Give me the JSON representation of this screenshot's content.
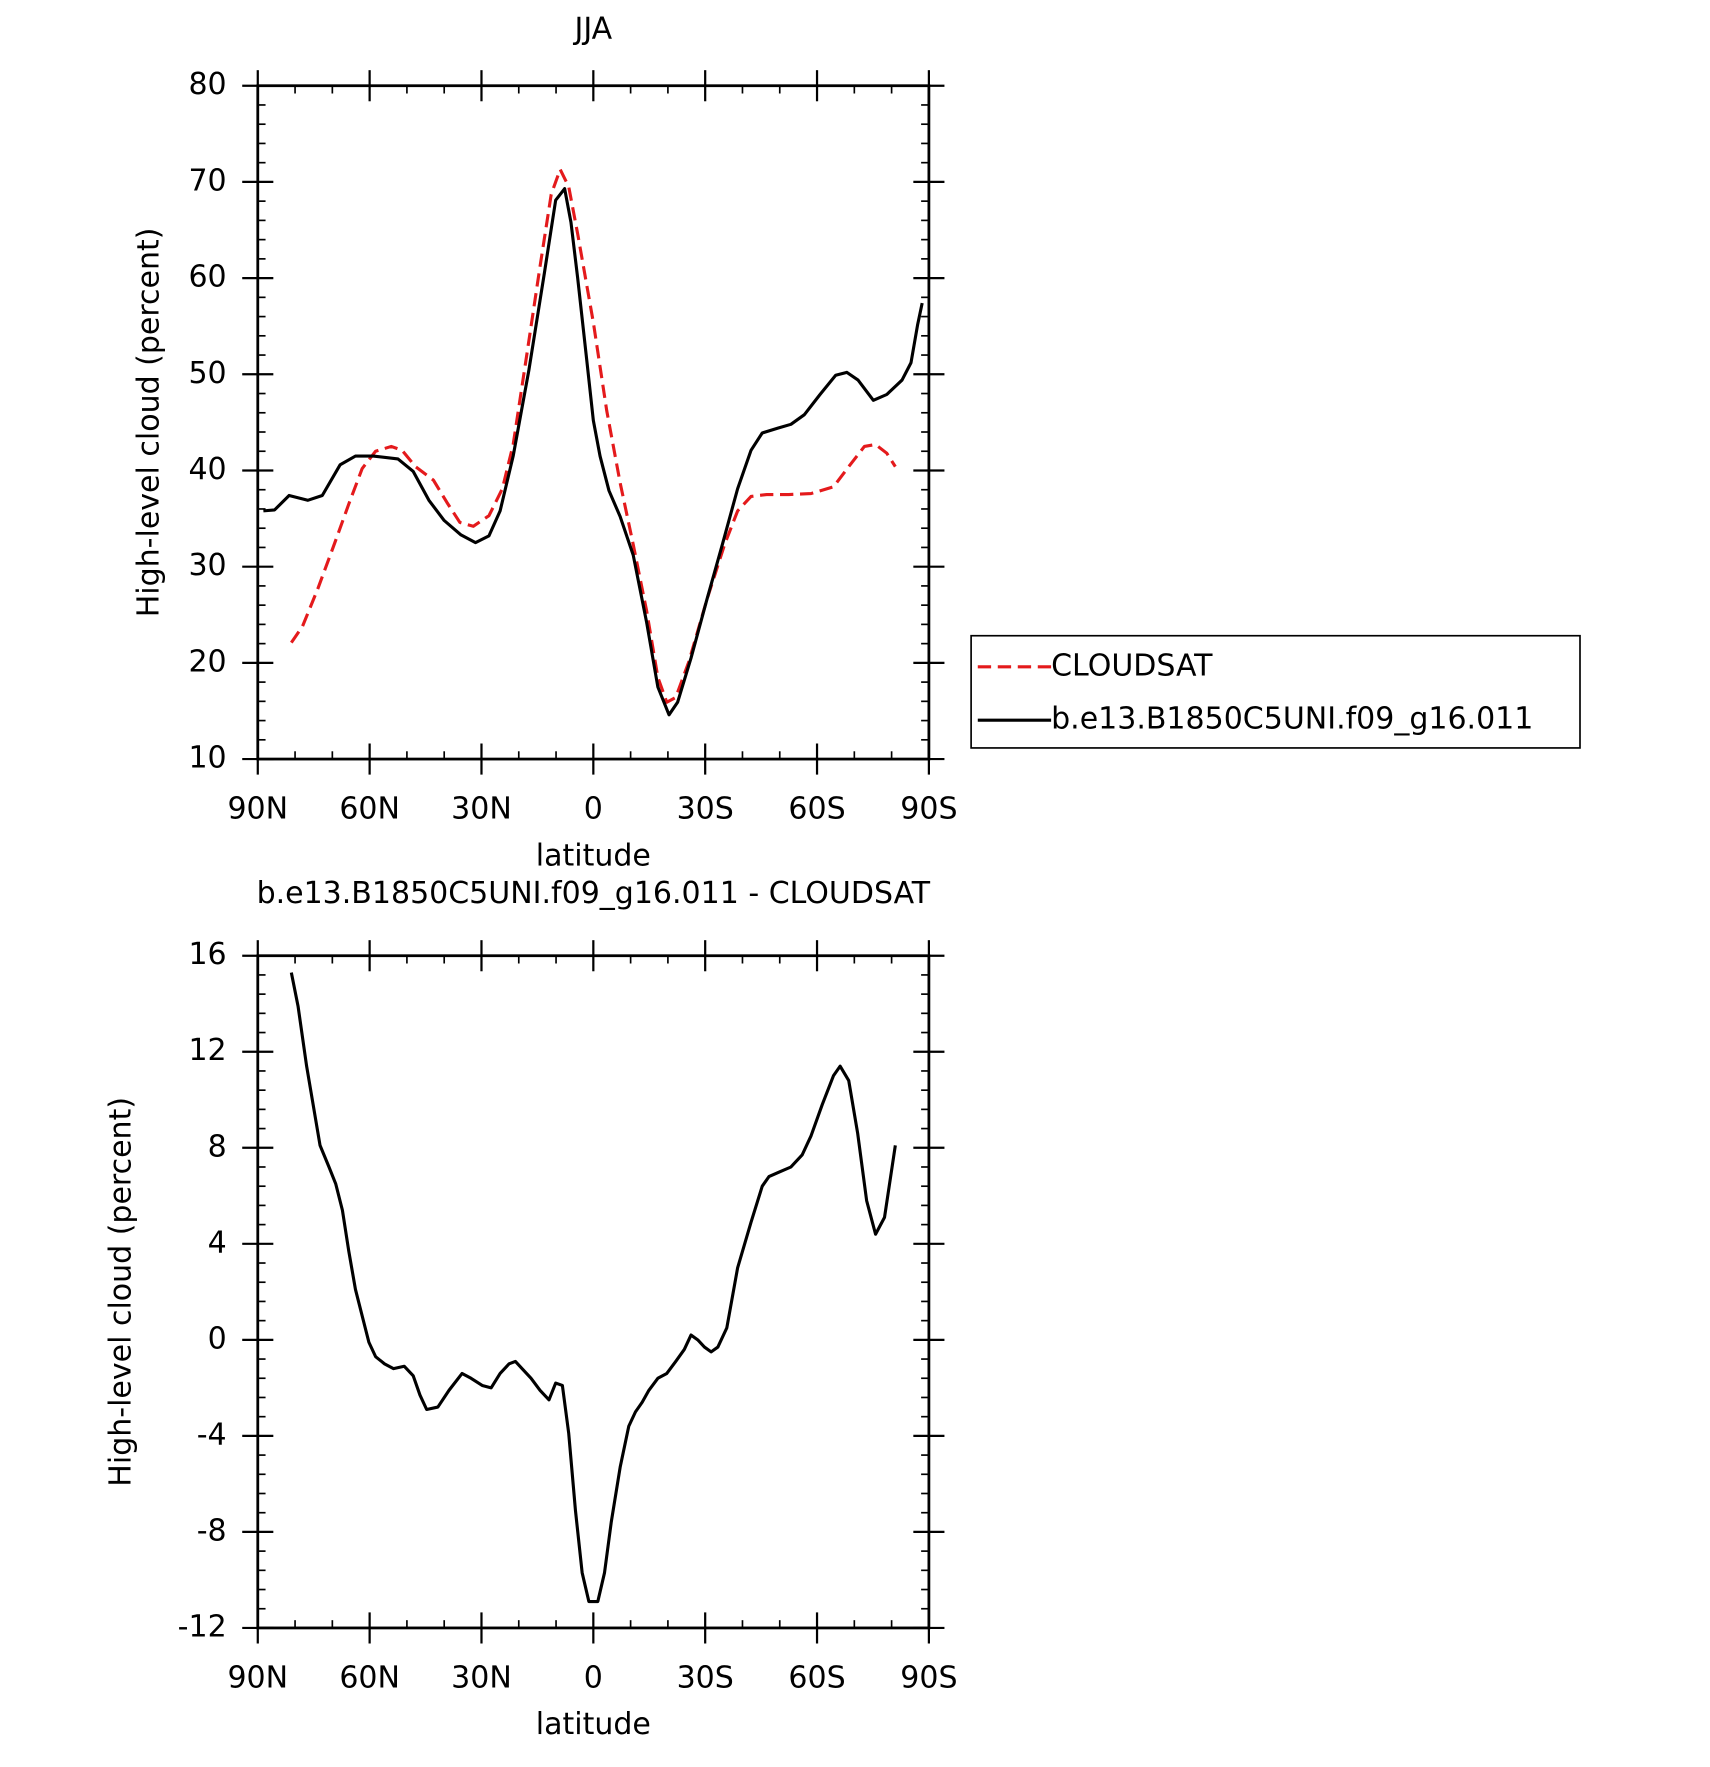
{
  "chart_data": [
    {
      "type": "line",
      "title": "JJA",
      "xlabel": "latitude",
      "ylabel": "High-level cloud (percent)",
      "xlim": [
        90,
        -90
      ],
      "xticks": [
        {
          "value": 90,
          "label": "90N"
        },
        {
          "value": 60,
          "label": "60N"
        },
        {
          "value": 30,
          "label": "30N"
        },
        0,
        {
          "value": -30,
          "label": "30S"
        },
        {
          "value": -60,
          "label": "60S"
        },
        {
          "value": -90,
          "label": "90S"
        }
      ],
      "ylim": [
        10,
        80
      ],
      "yticks": [
        10,
        20,
        30,
        40,
        50,
        60,
        70,
        80
      ],
      "legend": "right",
      "series": [
        {
          "name": "CLOUDSAT",
          "color": "#e41a1c",
          "dash": true,
          "x": [
            81,
            78,
            73.9,
            69.7,
            65.6,
            62,
            58.4,
            54.2,
            51.3,
            47.7,
            42.9,
            39.3,
            35.8,
            32.2,
            28,
            24.4,
            21.5,
            17.9,
            14.3,
            11.3,
            8.9,
            6.6,
            4.2,
            0,
            -3.6,
            -7.2,
            -10.7,
            -14.3,
            -17.3,
            -19.7,
            -22.1,
            -25.6,
            -30.4,
            -35.2,
            -38.7,
            -42.3,
            -46.5,
            -52.4,
            -58.4,
            -64.4,
            -68.5,
            -72.7,
            -75.7,
            -78.7,
            -81
          ],
          "values": [
            22.1,
            23.8,
            27.7,
            32.1,
            36.5,
            40.2,
            42,
            42.5,
            42.1,
            40.4,
            39,
            36.7,
            34.6,
            34.2,
            35.3,
            38.1,
            42.7,
            51.9,
            61.2,
            68.7,
            71.3,
            69.5,
            64.6,
            55.4,
            46.2,
            38.7,
            32.3,
            25.4,
            18.5,
            15.9,
            16.4,
            20.1,
            26.5,
            32.3,
            35.8,
            37.3,
            37.5,
            37.5,
            37.6,
            38.3,
            40.4,
            42.5,
            42.7,
            41.8,
            40.4
          ]
        },
        {
          "name": "b.e13.B1850C5UNI.f09_g16.011",
          "color": "#000000",
          "dash": false,
          "x": [
            88.5,
            85.5,
            81.6,
            76.6,
            72.7,
            67.9,
            63.8,
            59,
            52.4,
            48.3,
            44.1,
            40,
            35.5,
            31.6,
            28,
            25,
            21.5,
            17.3,
            13.1,
            10.1,
            7.7,
            6,
            4.2,
            1.8,
            0,
            -1.8,
            -4.2,
            -7.2,
            -10.7,
            -14.3,
            -17.3,
            -20.3,
            -22.6,
            -26.2,
            -30.4,
            -34.6,
            -38.7,
            -42.3,
            -45.3,
            -49.5,
            -53,
            -56.6,
            -60.8,
            -65,
            -68,
            -71,
            -75.1,
            -78.7,
            -82.8,
            -85.2,
            -87,
            -88.2
          ],
          "values": [
            35.8,
            35.9,
            37.4,
            36.9,
            37.4,
            40.6,
            41.5,
            41.5,
            41.2,
            39.9,
            36.9,
            34.8,
            33.3,
            32.5,
            33.2,
            35.8,
            41.5,
            50.4,
            60.6,
            68.1,
            69.3,
            65.8,
            60,
            51.6,
            45.2,
            41.5,
            37.9,
            35.2,
            31.2,
            24.2,
            17.5,
            14.6,
            15.9,
            20.5,
            26.5,
            32.3,
            38.1,
            42.1,
            43.9,
            44.4,
            44.8,
            45.8,
            47.9,
            49.9,
            50.2,
            49.4,
            47.3,
            47.9,
            49.4,
            51.2,
            55.2,
            57.4
          ]
        }
      ]
    },
    {
      "type": "line",
      "title": "b.e13.B1850C5UNI.f09_g16.011 - CLOUDSAT",
      "xlabel": "latitude",
      "ylabel": "High-level cloud (percent)",
      "xlim": [
        90,
        -90
      ],
      "xticks": [
        {
          "value": 90,
          "label": "90N"
        },
        {
          "value": 60,
          "label": "60N"
        },
        {
          "value": 30,
          "label": "30N"
        },
        0,
        {
          "value": -30,
          "label": "30S"
        },
        {
          "value": -60,
          "label": "60S"
        },
        {
          "value": -90,
          "label": "90S"
        }
      ],
      "ylim": [
        -12,
        16
      ],
      "yticks": [
        -12,
        -8,
        -4,
        0,
        4,
        8,
        12,
        16
      ],
      "series": [
        {
          "color": "#000000",
          "dash": false,
          "x": [
            81,
            79.2,
            76.9,
            73.3,
            70.9,
            69.1,
            67.3,
            65.6,
            63.8,
            62,
            60.2,
            58.4,
            56,
            53.6,
            50.7,
            48.3,
            46.5,
            44.7,
            41.7,
            38.7,
            35.2,
            32.8,
            29.8,
            27.4,
            25,
            22.6,
            20.9,
            19.1,
            16.7,
            14.3,
            11.9,
            10.1,
            8.3,
            6.6,
            4.8,
            3,
            1.2,
            -1.2,
            -3,
            -4.8,
            -7.2,
            -9.5,
            -11.3,
            -13.1,
            -14.9,
            -17.3,
            -19.7,
            -22.1,
            -24.4,
            -26.2,
            -28,
            -29.8,
            -31.6,
            -33.4,
            -35.8,
            -38.7,
            -42.3,
            -45.3,
            -47.1,
            -50,
            -53,
            -56,
            -58.4,
            -61.4,
            -64.4,
            -66.2,
            -68.5,
            -70.9,
            -73.3,
            -75.7,
            -78.1,
            -81
          ],
          "values": [
            15.3,
            13.9,
            11.4,
            8.1,
            7.2,
            6.5,
            5.4,
            3.7,
            2.1,
            1.0,
            -0.1,
            -0.7,
            -1.0,
            -1.2,
            -1.1,
            -1.5,
            -2.3,
            -2.9,
            -2.8,
            -2.1,
            -1.4,
            -1.6,
            -1.9,
            -2.0,
            -1.4,
            -1.0,
            -0.9,
            -1.2,
            -1.6,
            -2.1,
            -2.5,
            -1.8,
            -1.9,
            -3.9,
            -7.1,
            -9.7,
            -10.9,
            -10.9,
            -9.7,
            -7.6,
            -5.3,
            -3.6,
            -3.0,
            -2.6,
            -2.1,
            -1.6,
            -1.4,
            -0.9,
            -0.4,
            0.2,
            0.0,
            -0.3,
            -0.5,
            -0.3,
            0.5,
            3.0,
            4.9,
            6.4,
            6.8,
            7.0,
            7.2,
            7.7,
            8.5,
            9.8,
            11.0,
            11.4,
            10.8,
            8.6,
            5.8,
            4.4,
            5.1,
            8.1
          ]
        }
      ]
    }
  ]
}
